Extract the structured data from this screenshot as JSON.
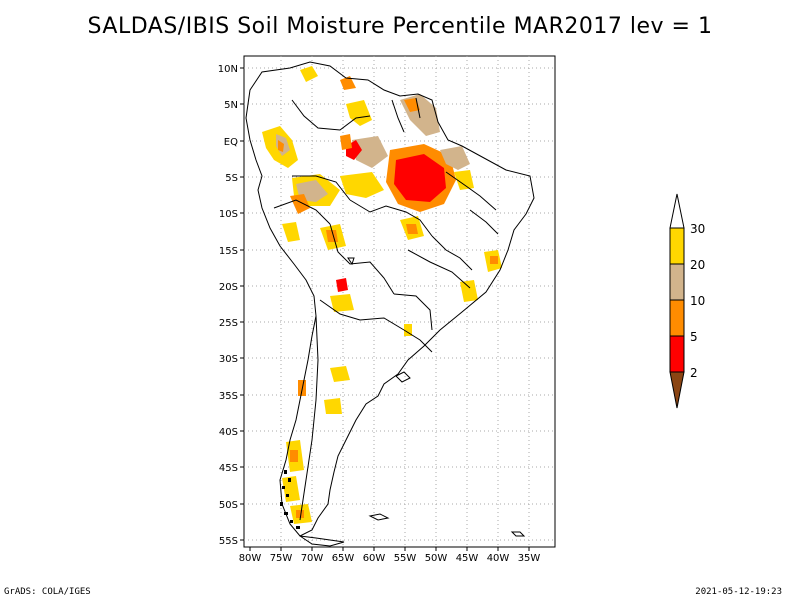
{
  "title": "SALDAS/IBIS Soil Moisture Percentile MAR2017 lev = 1",
  "footer": {
    "left": "GrADS: COLA/IGES",
    "right": "2021-05-12-19:23"
  },
  "axes": {
    "lon_labels": [
      "80W",
      "75W",
      "70W",
      "65W",
      "60W",
      "55W",
      "50W",
      "45W",
      "40W",
      "35W"
    ],
    "lat_labels": [
      "10N",
      "5N",
      "EQ",
      "5S",
      "10S",
      "15S",
      "20S",
      "25S",
      "30S",
      "35S",
      "40S",
      "45S",
      "50S",
      "55S"
    ]
  },
  "legend": {
    "labels": [
      "30",
      "20",
      "10",
      "5",
      "2"
    ],
    "colors": {
      "above30": "#ffffff",
      "b20_30": "#ffd700",
      "b10_20": "#d2b48c",
      "b5_10": "#ff8c00",
      "b2_5": "#ff0000",
      "below2": "#8b4513"
    }
  },
  "colors": {
    "grid": "#aaaaaa",
    "border": "#000000"
  }
}
